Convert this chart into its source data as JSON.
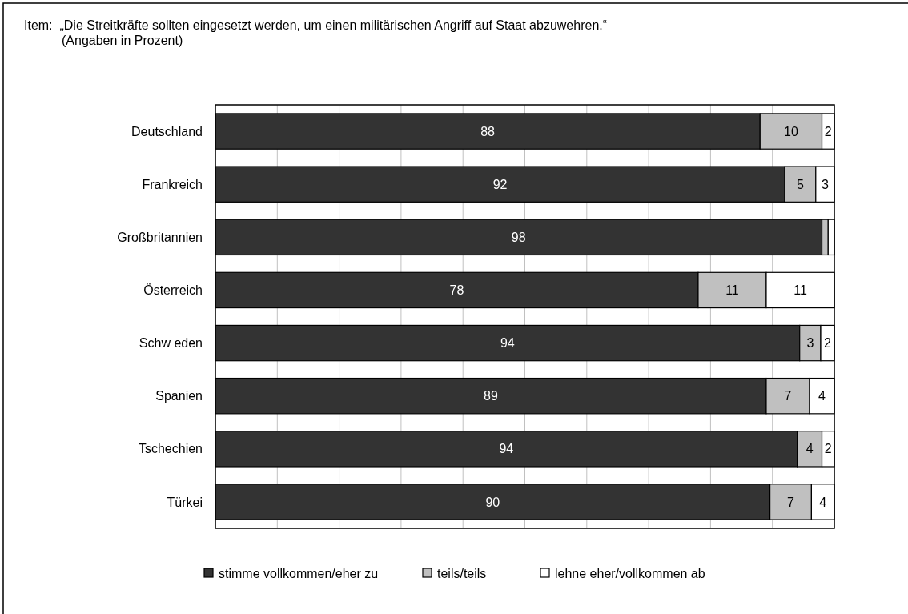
{
  "chart_data": {
    "type": "bar",
    "orientation": "horizontal",
    "stacked": true,
    "title": "Item:  „Die Streitkräfte sollten eingesetzt werden, um einen militärischen Angriff auf Staat abzuwehren.“",
    "subtitle": "(Angaben in Prozent)",
    "categories": [
      "Deutschland",
      "Frankreich",
      "Großbritannien",
      "Österreich",
      "Schw eden",
      "Spanien",
      "Tschechien",
      "Türkei"
    ],
    "series": [
      {
        "name": "stimme vollkommen/eher zu",
        "color": "#333333",
        "values": [
          88,
          92,
          98,
          78,
          94.4,
          89,
          94,
          89.6
        ],
        "value_labels": [
          "88",
          "92",
          "98",
          "78",
          "94",
          "89",
          "94",
          "90"
        ]
      },
      {
        "name": "teils/teils",
        "color": "#c0c0c0",
        "values": [
          10,
          5,
          1,
          11,
          3.4,
          7,
          4,
          6.7
        ],
        "value_labels": [
          "10",
          "5",
          null,
          "11",
          "3",
          "7",
          "4",
          "7"
        ]
      },
      {
        "name": "lehne eher/vollkommen ab",
        "color": "#ffffff",
        "values": [
          2,
          3,
          1,
          11,
          2.2,
          4,
          2,
          3.7
        ],
        "value_labels": [
          "2",
          "3",
          null,
          "11",
          "2",
          "4",
          "2",
          "4"
        ]
      }
    ],
    "xlim": [
      0,
      100
    ],
    "xticks": [
      {
        "value": 0,
        "label": null
      },
      {
        "value": 10,
        "label": null
      },
      {
        "value": 20,
        "label": null
      },
      {
        "value": 30,
        "label": null
      },
      {
        "value": 40,
        "label": null
      },
      {
        "value": 50,
        "label": null
      },
      {
        "value": 60,
        "label": null
      },
      {
        "value": 70,
        "label": null
      },
      {
        "value": 80,
        "label": null
      },
      {
        "value": 90,
        "label": null
      },
      {
        "value": 100,
        "label": null
      }
    ],
    "tick_labels": "y",
    "grid": "x",
    "legend": "bottom"
  }
}
